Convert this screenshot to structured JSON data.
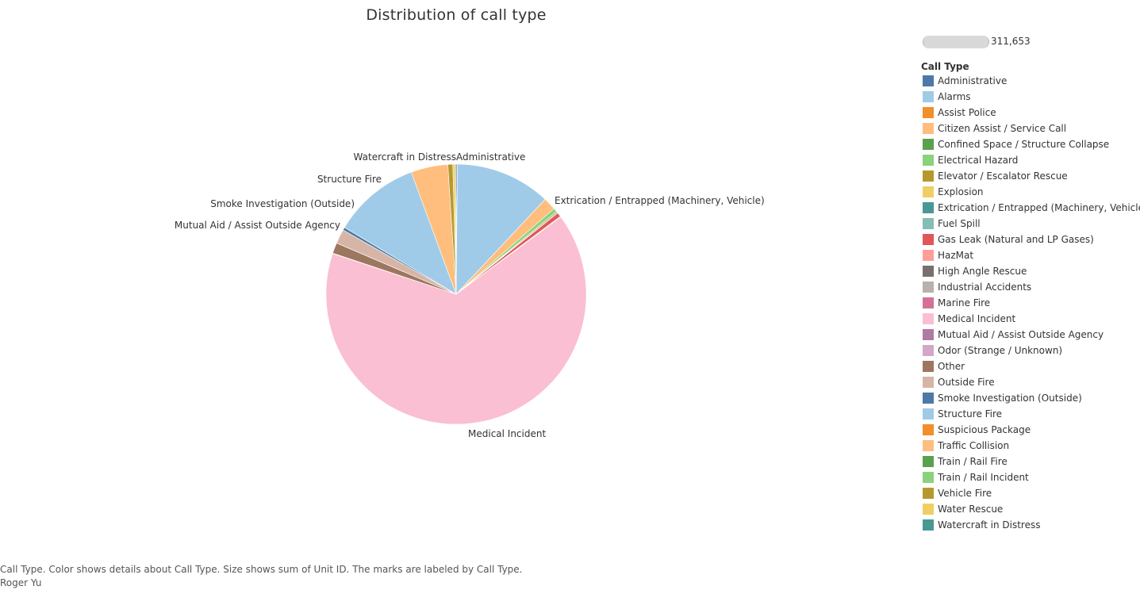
{
  "title": "Distribution of call type",
  "size_legend": {
    "value": "311,653"
  },
  "legend": {
    "title": "Call Type",
    "items": [
      {
        "label": "Administrative",
        "color": "#4E79A7"
      },
      {
        "label": "Alarms",
        "color": "#A0CBE8"
      },
      {
        "label": "Assist Police",
        "color": "#F28E2B"
      },
      {
        "label": "Citizen Assist / Service Call",
        "color": "#FFBE7D"
      },
      {
        "label": "Confined Space / Structure Collapse",
        "color": "#59A14F"
      },
      {
        "label": "Electrical Hazard",
        "color": "#8CD17D"
      },
      {
        "label": "Elevator / Escalator Rescue",
        "color": "#B6992D"
      },
      {
        "label": "Explosion",
        "color": "#F1CE63"
      },
      {
        "label": "Extrication / Entrapped (Machinery, Vehicle)",
        "color": "#499894"
      },
      {
        "label": "Fuel Spill",
        "color": "#86BCB6"
      },
      {
        "label": "Gas Leak (Natural and LP Gases)",
        "color": "#E15759"
      },
      {
        "label": "HazMat",
        "color": "#FF9D9A"
      },
      {
        "label": "High Angle Rescue",
        "color": "#79706E"
      },
      {
        "label": "Industrial Accidents",
        "color": "#BAB0AC"
      },
      {
        "label": "Marine Fire",
        "color": "#D37295"
      },
      {
        "label": "Medical Incident",
        "color": "#FABFD2"
      },
      {
        "label": "Mutual Aid / Assist Outside Agency",
        "color": "#B07AA1"
      },
      {
        "label": "Odor (Strange / Unknown)",
        "color": "#D4A6C8"
      },
      {
        "label": "Other",
        "color": "#9D7660"
      },
      {
        "label": "Outside Fire",
        "color": "#D7B5A6"
      },
      {
        "label": "Smoke Investigation (Outside)",
        "color": "#4E79A7"
      },
      {
        "label": "Structure Fire",
        "color": "#A0CBE8"
      },
      {
        "label": "Suspicious Package",
        "color": "#F28E2B"
      },
      {
        "label": "Traffic Collision",
        "color": "#FFBE7D"
      },
      {
        "label": "Train / Rail Fire",
        "color": "#59A14F"
      },
      {
        "label": "Train / Rail Incident",
        "color": "#8CD17D"
      },
      {
        "label": "Vehicle Fire",
        "color": "#B6992D"
      },
      {
        "label": "Water Rescue",
        "color": "#F1CE63"
      },
      {
        "label": "Watercraft in Distress",
        "color": "#499894"
      }
    ]
  },
  "chart_data": {
    "type": "pie",
    "title": "Distribution of call type",
    "slices": [
      {
        "label": "Administrative",
        "value": 0.15,
        "color": "#4E79A7",
        "show_label": true
      },
      {
        "label": "Alarms",
        "value": 11.6,
        "color": "#A0CBE8",
        "show_label": false
      },
      {
        "label": "Citizen Assist / Service Call",
        "value": 1.55,
        "color": "#FFBE7D",
        "show_label": false
      },
      {
        "label": "Electrical Hazard",
        "value": 0.45,
        "color": "#8CD17D",
        "show_label": false
      },
      {
        "label": "Elevator / Escalator Rescue",
        "value": 0.15,
        "color": "#B6992D",
        "show_label": false
      },
      {
        "label": "Extrication / Entrapped (Machinery, Vehicle)",
        "value": 0.1,
        "color": "#499894",
        "show_label": true
      },
      {
        "label": "Gas Leak (Natural and LP Gases)",
        "value": 0.5,
        "color": "#E15759",
        "show_label": false
      },
      {
        "label": "HazMat",
        "value": 0.1,
        "color": "#FF9D9A",
        "show_label": false
      },
      {
        "label": "Medical Incident",
        "value": 63.9,
        "color": "#FABFD2",
        "show_label": true
      },
      {
        "label": "Mutual Aid / Assist Outside Agency",
        "value": 0.05,
        "color": "#B07AA1",
        "show_label": true
      },
      {
        "label": "Other",
        "value": 1.3,
        "color": "#9D7660",
        "show_label": false
      },
      {
        "label": "Outside Fire",
        "value": 1.75,
        "color": "#D7B5A6",
        "show_label": false
      },
      {
        "label": "Smoke Investigation (Outside)",
        "value": 0.35,
        "color": "#4E79A7",
        "show_label": true
      },
      {
        "label": "Structure Fire",
        "value": 10.6,
        "color": "#A0CBE8",
        "show_label": true
      },
      {
        "label": "Traffic Collision",
        "value": 4.5,
        "color": "#FFBE7D",
        "show_label": false
      },
      {
        "label": "Vehicle Fire",
        "value": 0.6,
        "color": "#B6992D",
        "show_label": false
      },
      {
        "label": "Water Rescue",
        "value": 0.3,
        "color": "#F1CE63",
        "show_label": false
      },
      {
        "label": "Watercraft in Distress",
        "value": 0.1,
        "color": "#499894",
        "show_label": true
      }
    ]
  },
  "caption": {
    "line1": "Call Type.  Color shows details about Call Type.  Size shows sum of Unit ID.  The marks are labeled by Call Type.",
    "line2": "Roger Yu"
  }
}
